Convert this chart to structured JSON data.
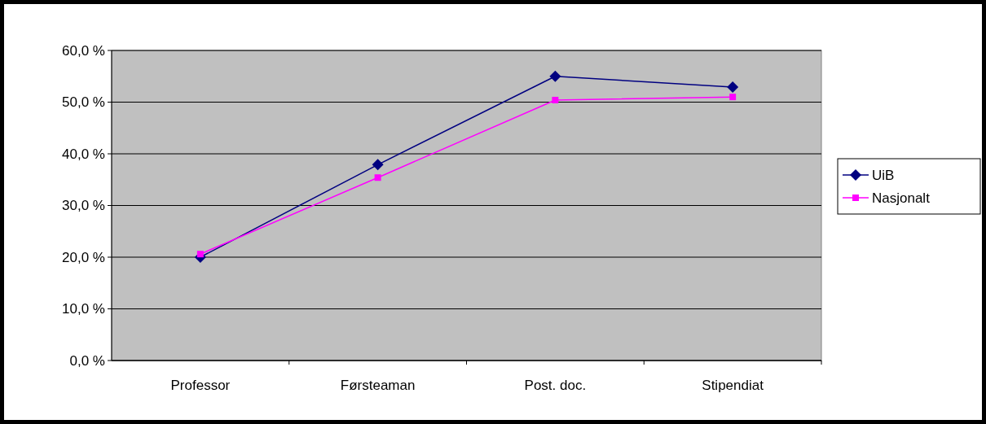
{
  "chart_data": {
    "type": "line",
    "categories": [
      "Professor",
      "Førsteaman",
      "Post. doc.",
      "Stipendiat"
    ],
    "series": [
      {
        "name": "UiB",
        "color": "#000080",
        "marker": "diamond",
        "values": [
          20.0,
          37.9,
          55.0,
          52.9
        ]
      },
      {
        "name": "Nasjonalt",
        "color": "#ff00ff",
        "marker": "square",
        "values": [
          20.6,
          35.4,
          50.4,
          51.0
        ]
      }
    ],
    "ylim": [
      0,
      60
    ],
    "yticks": [
      {
        "value": 0,
        "label": "0,0 %"
      },
      {
        "value": 10,
        "label": "10,0 %"
      },
      {
        "value": 20,
        "label": "20,0 %"
      },
      {
        "value": 30,
        "label": "30,0 %"
      },
      {
        "value": 40,
        "label": "40,0 %"
      },
      {
        "value": 50,
        "label": "50,0 %"
      },
      {
        "value": 60,
        "label": "60,0 %"
      }
    ],
    "grid": "y",
    "legend": "right"
  }
}
